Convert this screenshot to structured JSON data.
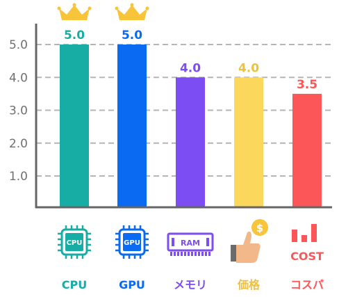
{
  "chart_data": {
    "type": "bar",
    "title": "",
    "xlabel": "",
    "ylabel": "",
    "ylim": [
      0,
      5.5
    ],
    "yticks": [
      "1.0",
      "2.0",
      "3.0",
      "4.0",
      "5.0"
    ],
    "ytick_values": [
      1,
      2,
      3,
      4,
      5
    ],
    "grid": true,
    "categories": [
      "CPU",
      "GPU",
      "メモリ",
      "価格",
      "コスパ"
    ],
    "values": [
      5.0,
      5.0,
      4.0,
      4.0,
      3.5
    ],
    "value_labels": [
      "5.0",
      "5.0",
      "4.0",
      "4.0",
      "3.5"
    ],
    "colors": [
      "#17ada4",
      "#0b6af2",
      "#7b4df2",
      "#fbd75c",
      "#fd5659"
    ],
    "label_colors": [
      "#17ada4",
      "#0b6af2",
      "#7b4df2",
      "#efc13b",
      "#fd5659"
    ],
    "crowned": [
      "CPU",
      "GPU"
    ],
    "icons": [
      {
        "name": "cpu-chip-icon",
        "text": "CPU"
      },
      {
        "name": "gpu-chip-icon",
        "text": "GPU"
      },
      {
        "name": "ram-module-icon",
        "text": "RAM"
      },
      {
        "name": "thumbs-up-coin-icon",
        "text": "$"
      },
      {
        "name": "cost-chart-icon",
        "text": "COST"
      }
    ]
  }
}
